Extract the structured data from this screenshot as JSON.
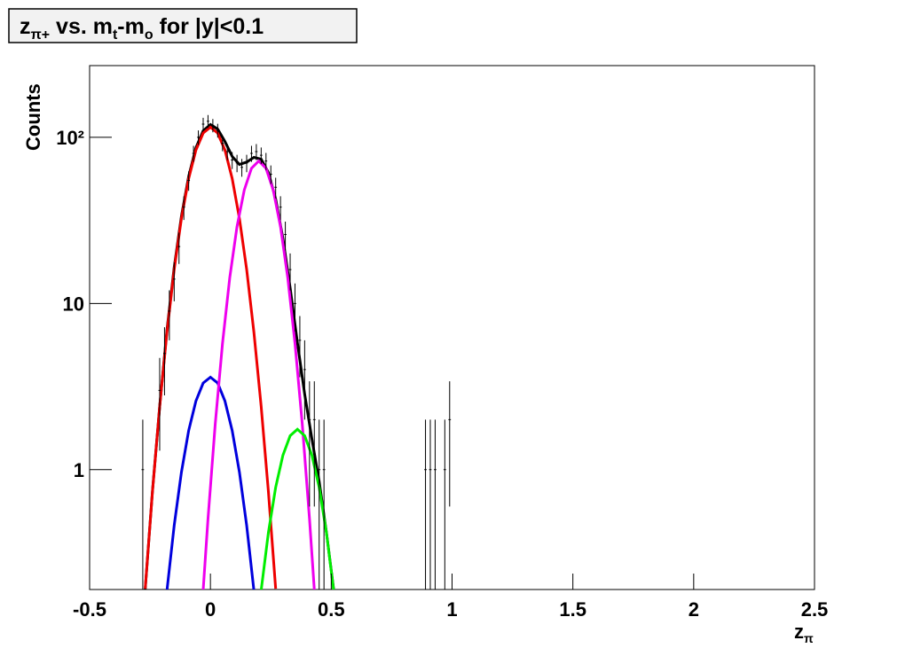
{
  "chart_data": {
    "type": "line",
    "title": [
      "z",
      "π+",
      " vs. m",
      "t",
      "-m",
      "o",
      " for |y|<0.1"
    ],
    "x_label": [
      "z",
      "π"
    ],
    "y_label": "Counts",
    "log_y": true,
    "xlim": [
      -0.5,
      2.5
    ],
    "ylim": [
      0.19,
      270
    ],
    "xticks": [
      -0.5,
      0,
      0.5,
      1,
      1.5,
      2,
      2.5
    ],
    "yticks": [
      1,
      10,
      {
        "value": 100,
        "label": "10²"
      }
    ],
    "points": {
      "color": "#000000",
      "x": [
        -0.28,
        -0.21,
        -0.19,
        -0.17,
        -0.15,
        -0.13,
        -0.11,
        -0.09,
        -0.07,
        -0.05,
        -0.03,
        -0.01,
        0.01,
        0.03,
        0.05,
        0.07,
        0.09,
        0.11,
        0.13,
        0.15,
        0.17,
        0.19,
        0.21,
        0.23,
        0.25,
        0.27,
        0.29,
        0.31,
        0.33,
        0.35,
        0.37,
        0.39,
        0.41,
        0.43,
        0.45,
        0.47,
        0.89,
        0.91,
        0.93,
        0.97,
        0.99
      ],
      "values": [
        1,
        3,
        5,
        9,
        14,
        22,
        38,
        55,
        80,
        100,
        120,
        125,
        118,
        110,
        92,
        82,
        73,
        70,
        66,
        70,
        80,
        82,
        78,
        72,
        60,
        50,
        38,
        26,
        16,
        10,
        6,
        4,
        2,
        2,
        1,
        1,
        1,
        1,
        1,
        1,
        2
      ],
      "errors": [
        1,
        1.7,
        2.2,
        3,
        3.7,
        4.7,
        6.2,
        7.4,
        8.9,
        10,
        11,
        11.2,
        10.9,
        10.5,
        9.6,
        9.1,
        8.5,
        8.4,
        8.1,
        8.4,
        8.9,
        9.1,
        8.8,
        8.5,
        7.7,
        7.1,
        6.2,
        5.1,
        4,
        3.2,
        2.4,
        2,
        1.4,
        1.4,
        1,
        1,
        1,
        1,
        1,
        1,
        1.4
      ]
    },
    "curves": [
      {
        "color": "#000000",
        "x": [
          -0.27,
          -0.24,
          -0.21,
          -0.18,
          -0.15,
          -0.12,
          -0.09,
          -0.06,
          -0.03,
          0,
          0.03,
          0.06,
          0.09,
          0.12,
          0.15,
          0.18,
          0.21,
          0.24,
          0.27,
          0.3,
          0.33,
          0.36,
          0.39,
          0.42,
          0.45,
          0.48,
          0.51
        ],
        "values": [
          0.19,
          0.74,
          2.4,
          6.9,
          16.5,
          33.5,
          58.2,
          86.4,
          109.5,
          119.4,
          112.1,
          94.4,
          76.7,
          68.6,
          70.9,
          75.7,
          73.8,
          61.3,
          42.5,
          24.6,
          12.4,
          5.81,
          2.85,
          1.53,
          0.85,
          0.42,
          0.19
        ]
      },
      {
        "color": "#ee0000",
        "x": [
          -0.27,
          -0.24,
          -0.21,
          -0.18,
          -0.15,
          -0.12,
          -0.09,
          -0.06,
          -0.03,
          0,
          0.03,
          0.06,
          0.09,
          0.12,
          0.15,
          0.18,
          0.21,
          0.24,
          0.27
        ],
        "values": [
          0.192,
          0.735,
          2.4,
          6.7,
          16,
          32.5,
          56.5,
          83.8,
          106,
          115,
          106,
          83.8,
          56.5,
          32.5,
          16,
          6.7,
          2.4,
          0.735,
          0.192
        ]
      },
      {
        "color": "#0000dd",
        "x": [
          -0.18,
          -0.15,
          -0.12,
          -0.09,
          -0.06,
          -0.03,
          0,
          0.03,
          0.06,
          0.09,
          0.12,
          0.15,
          0.18
        ],
        "values": [
          0.187,
          0.461,
          0.966,
          1.72,
          2.59,
          3.32,
          3.6,
          3.32,
          2.59,
          1.72,
          0.966,
          0.461,
          0.187
        ]
      },
      {
        "color": "#ee00ee",
        "x": [
          -0.03,
          -0.01,
          0.02,
          0.05,
          0.08,
          0.11,
          0.14,
          0.17,
          0.2,
          0.23,
          0.26,
          0.29,
          0.32,
          0.35,
          0.38,
          0.41,
          0.43
        ],
        "values": [
          0.189,
          0.507,
          1.89,
          5.75,
          14.3,
          29,
          48.1,
          65.1,
          72,
          65.1,
          48.1,
          29,
          14.3,
          5.75,
          1.89,
          0.507,
          0.189
        ]
      },
      {
        "color": "#00ee00",
        "x": [
          0.21,
          0.24,
          0.27,
          0.3,
          0.33,
          0.36,
          0.39,
          0.42,
          0.45,
          0.48,
          0.51
        ],
        "values": [
          0.188,
          0.419,
          0.783,
          1.22,
          1.6,
          1.75,
          1.6,
          1.22,
          0.783,
          0.419,
          0.188
        ]
      }
    ]
  }
}
